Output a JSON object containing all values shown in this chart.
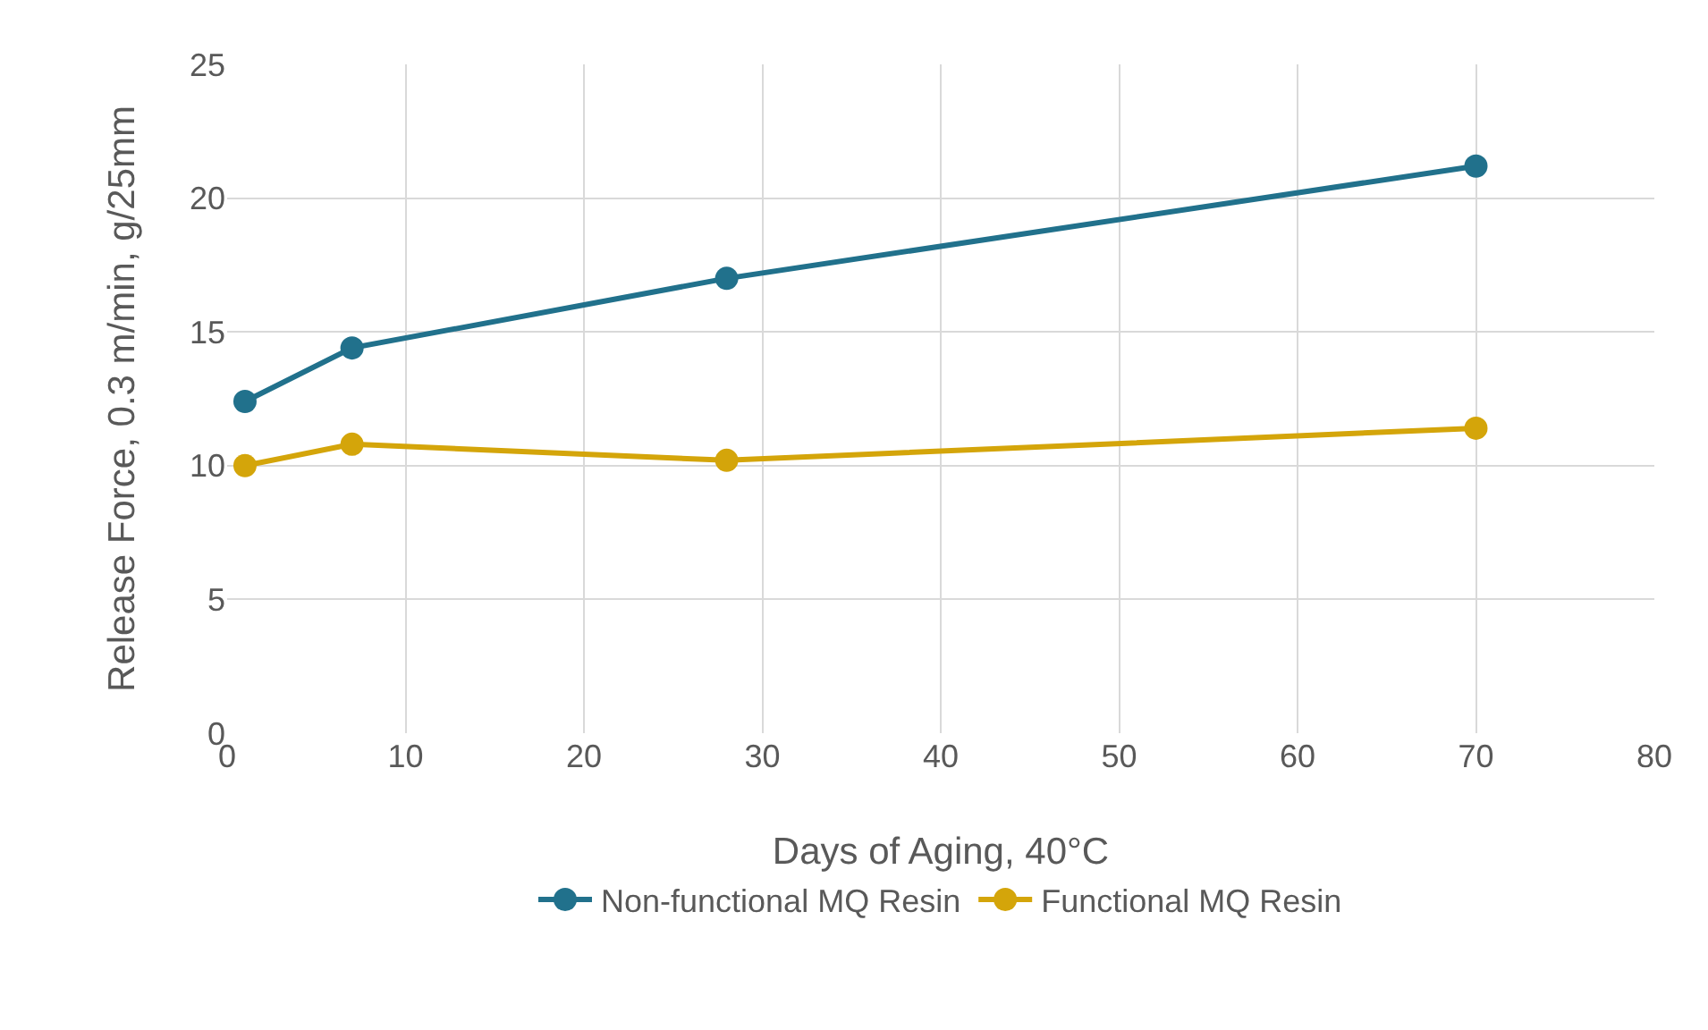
{
  "chart_data": {
    "type": "line",
    "xlabel": "Days of Aging, 40°C",
    "ylabel": "Release Force, 0.3 m/min, g/25mm",
    "x": [
      1,
      7,
      28,
      70
    ],
    "series": [
      {
        "name": "Non-functional MQ Resin",
        "color": "#21718c",
        "values": [
          12.4,
          14.4,
          17.0,
          21.2
        ]
      },
      {
        "name": "Functional MQ Resin",
        "color": "#d4a50a",
        "values": [
          10.0,
          10.8,
          10.2,
          11.4
        ]
      }
    ],
    "xlim": [
      0,
      80
    ],
    "xticks": [
      0,
      10,
      20,
      30,
      40,
      50,
      60,
      70,
      80
    ],
    "ylim": [
      0,
      25
    ],
    "yticks": [
      0,
      5,
      10,
      15,
      20,
      25
    ],
    "grid": true,
    "legend": "bottom",
    "marker": "circle",
    "line_style": "solid"
  }
}
